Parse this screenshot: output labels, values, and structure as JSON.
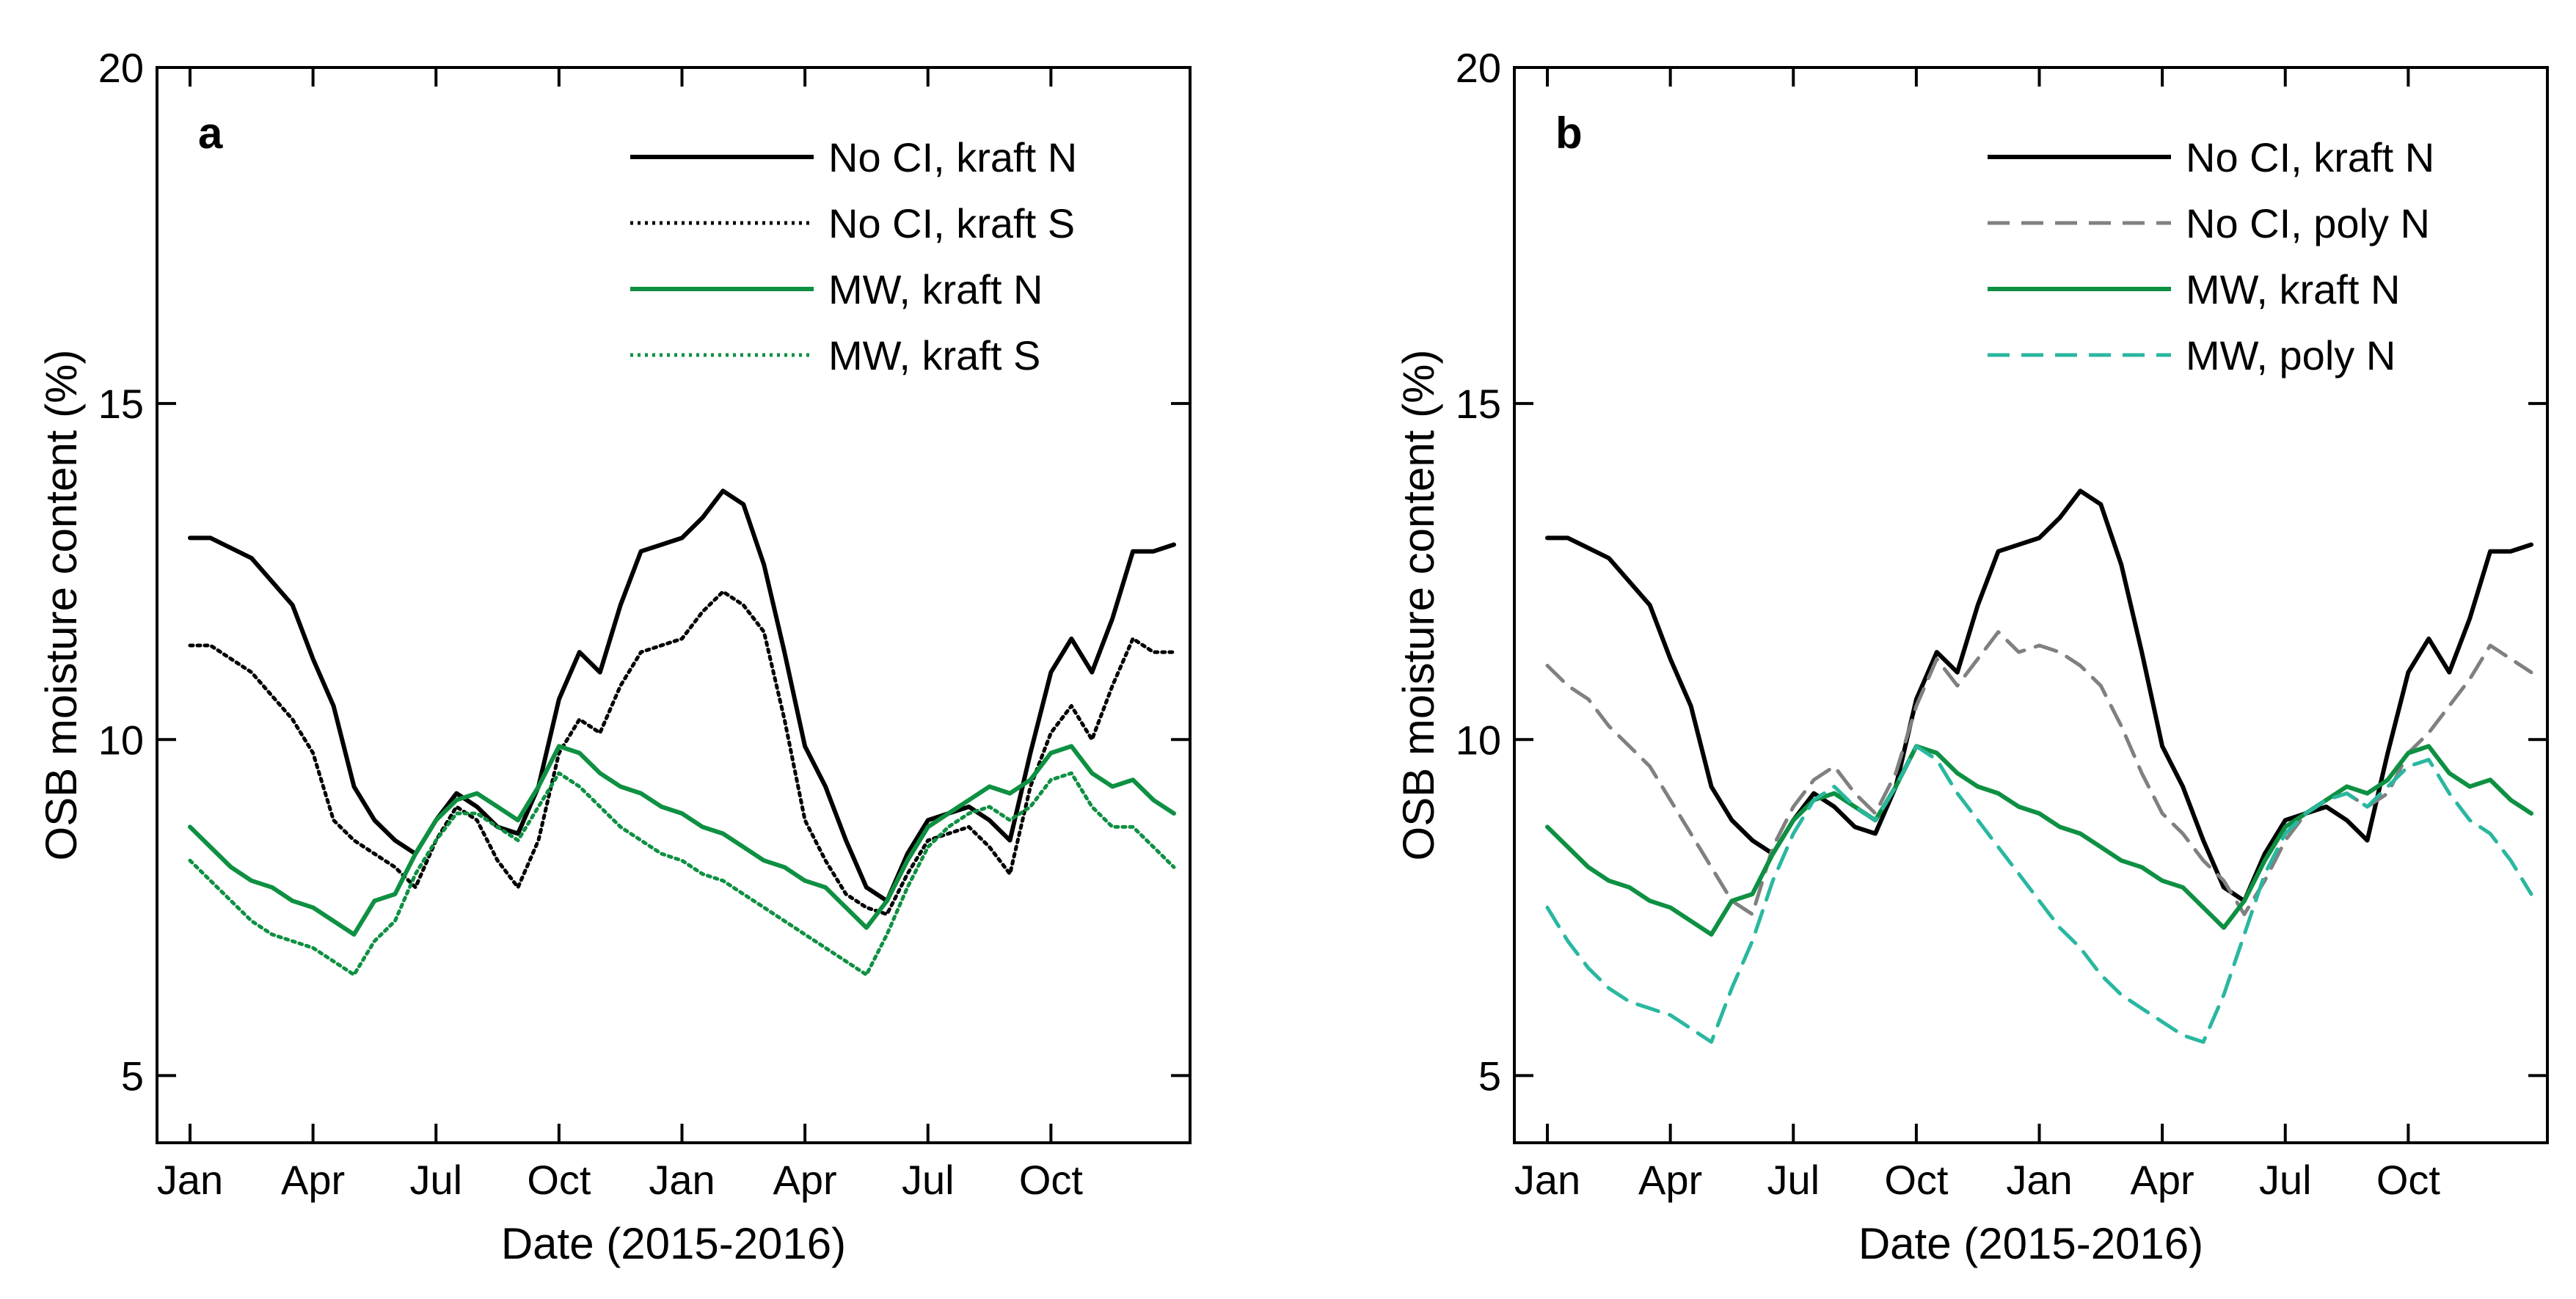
{
  "chart_data": [
    {
      "type": "line",
      "panel_label": "a",
      "xlabel": "Date (2015-2016)",
      "ylabel": "OSB moisture content (%)",
      "ylim": [
        4,
        20
      ],
      "xlim": [
        0,
        24
      ],
      "x_units": "months since Jan 2015",
      "yticks": [
        5,
        10,
        15,
        20
      ],
      "ytick_labels": [
        "5",
        "10",
        "15",
        "20"
      ],
      "xticks": [
        0,
        3,
        6,
        9,
        12,
        15,
        18,
        21
      ],
      "xtick_labels": [
        "Jan",
        "Apr",
        "Jul",
        "Oct",
        "Jan",
        "Apr",
        "Jul",
        "Oct"
      ],
      "legend_position": "top-right",
      "series": [
        {
          "name": "No CI, kraft N",
          "color": "#000000",
          "style": "solid",
          "x": [
            0,
            0.5,
            1.5,
            2.5,
            3,
            3.5,
            4,
            4.5,
            5,
            5.5,
            6,
            6.5,
            7,
            7.5,
            8,
            8.5,
            9,
            9.5,
            10,
            10.5,
            11,
            12,
            12.5,
            13,
            13.5,
            14,
            14.5,
            15,
            15.5,
            16,
            16.5,
            17,
            17.5,
            18,
            18.5,
            19,
            19.5,
            20,
            20.5,
            21,
            21.5,
            22,
            22.5,
            23,
            23.5,
            24
          ],
          "y": [
            13.0,
            13.0,
            12.7,
            12.0,
            11.2,
            10.5,
            9.3,
            8.8,
            8.5,
            8.3,
            8.8,
            9.2,
            9.0,
            8.7,
            8.6,
            9.3,
            10.6,
            11.3,
            11.0,
            12.0,
            12.8,
            13.0,
            13.3,
            13.7,
            13.5,
            12.6,
            11.3,
            9.9,
            9.3,
            8.5,
            7.8,
            7.6,
            8.3,
            8.8,
            8.9,
            9.0,
            8.8,
            8.5,
            9.8,
            11.0,
            11.5,
            11.0,
            11.8,
            12.8,
            12.8,
            12.9
          ]
        },
        {
          "name": "No CI, kraft S",
          "color": "#000000",
          "style": "dotted",
          "x": [
            0,
            0.5,
            1.5,
            2.5,
            3,
            3.5,
            4,
            4.5,
            5,
            5.5,
            6,
            6.5,
            7,
            7.5,
            8,
            8.5,
            9,
            9.5,
            10,
            10.5,
            11,
            12,
            12.5,
            13,
            13.5,
            14,
            14.5,
            15,
            15.5,
            16,
            16.5,
            17,
            17.5,
            18,
            18.5,
            19,
            19.5,
            20,
            20.5,
            21,
            21.5,
            22,
            22.5,
            23,
            23.5,
            24
          ],
          "y": [
            11.4,
            11.4,
            11.0,
            10.3,
            9.8,
            8.8,
            8.5,
            8.3,
            8.1,
            7.8,
            8.5,
            9.0,
            8.8,
            8.2,
            7.8,
            8.5,
            9.8,
            10.3,
            10.1,
            10.8,
            11.3,
            11.5,
            11.9,
            12.2,
            12.0,
            11.6,
            10.3,
            8.8,
            8.2,
            7.7,
            7.5,
            7.4,
            8.0,
            8.5,
            8.6,
            8.7,
            8.4,
            8.0,
            9.3,
            10.1,
            10.5,
            10.0,
            10.8,
            11.5,
            11.3,
            11.3
          ]
        },
        {
          "name": "MW, kraft N",
          "color": "#0e9042",
          "style": "solid",
          "x": [
            0,
            0.5,
            1,
            1.5,
            2,
            2.5,
            3,
            3.5,
            4,
            4.5,
            5,
            5.5,
            6,
            6.5,
            7,
            7.5,
            8,
            8.5,
            9,
            9.5,
            10,
            10.5,
            11,
            11.5,
            12,
            12.5,
            13,
            13.5,
            14,
            14.5,
            15,
            15.5,
            16,
            16.5,
            17,
            17.5,
            18,
            18.5,
            19,
            19.5,
            20,
            20.5,
            21,
            21.5,
            22,
            22.5,
            23,
            23.5,
            24
          ],
          "y": [
            8.7,
            8.4,
            8.1,
            7.9,
            7.8,
            7.6,
            7.5,
            7.3,
            7.1,
            7.6,
            7.7,
            8.3,
            8.8,
            9.1,
            9.2,
            9.0,
            8.8,
            9.3,
            9.9,
            9.8,
            9.5,
            9.3,
            9.2,
            9.0,
            8.9,
            8.7,
            8.6,
            8.4,
            8.2,
            8.1,
            7.9,
            7.8,
            7.5,
            7.2,
            7.6,
            8.2,
            8.7,
            8.9,
            9.1,
            9.3,
            9.2,
            9.4,
            9.8,
            9.9,
            9.5,
            9.3,
            9.4,
            9.1,
            8.9
          ]
        },
        {
          "name": "MW, kraft S",
          "color": "#0e9042",
          "style": "dotted",
          "x": [
            0,
            0.5,
            1,
            1.5,
            2,
            2.5,
            3,
            3.5,
            4,
            4.5,
            5,
            5.5,
            6,
            6.5,
            7,
            7.5,
            8,
            8.5,
            9,
            9.5,
            10,
            10.5,
            11,
            11.5,
            12,
            12.5,
            13,
            13.5,
            14,
            14.5,
            15,
            15.5,
            16,
            16.5,
            17,
            17.5,
            18,
            18.5,
            19,
            19.5,
            20,
            20.5,
            21,
            21.5,
            22,
            22.5,
            23,
            23.5,
            24
          ],
          "y": [
            8.2,
            7.9,
            7.6,
            7.3,
            7.1,
            7.0,
            6.9,
            6.7,
            6.5,
            7.0,
            7.3,
            8.0,
            8.5,
            8.9,
            8.9,
            8.7,
            8.5,
            9.0,
            9.5,
            9.3,
            9.0,
            8.7,
            8.5,
            8.3,
            8.2,
            8.0,
            7.9,
            7.7,
            7.5,
            7.3,
            7.1,
            6.9,
            6.7,
            6.5,
            7.1,
            7.8,
            8.4,
            8.7,
            8.9,
            9.0,
            8.8,
            9.0,
            9.4,
            9.5,
            9.0,
            8.7,
            8.7,
            8.4,
            8.1
          ]
        }
      ]
    },
    {
      "type": "line",
      "panel_label": "b",
      "xlabel": "Date (2015-2016)",
      "ylabel": "OSB moisture content (%)",
      "ylim": [
        4,
        20
      ],
      "xlim": [
        0,
        24
      ],
      "x_units": "months since Jan 2015",
      "yticks": [
        5,
        10,
        15,
        20
      ],
      "ytick_labels": [
        "5",
        "10",
        "15",
        "20"
      ],
      "xticks": [
        0,
        3,
        6,
        9,
        12,
        15,
        18,
        21
      ],
      "xtick_labels": [
        "Jan",
        "Apr",
        "Jul",
        "Oct",
        "Jan",
        "Apr",
        "Jul",
        "Oct"
      ],
      "legend_position": "top-right",
      "series": [
        {
          "name": "No CI, kraft N",
          "color": "#000000",
          "style": "solid",
          "x": [
            0,
            0.5,
            1.5,
            2.5,
            3,
            3.5,
            4,
            4.5,
            5,
            5.5,
            6,
            6.5,
            7,
            7.5,
            8,
            8.5,
            9,
            9.5,
            10,
            10.5,
            11,
            12,
            12.5,
            13,
            13.5,
            14,
            14.5,
            15,
            15.5,
            16,
            16.5,
            17,
            17.5,
            18,
            18.5,
            19,
            19.5,
            20,
            20.5,
            21,
            21.5,
            22,
            22.5,
            23,
            23.5,
            24
          ],
          "y": [
            13.0,
            13.0,
            12.7,
            12.0,
            11.2,
            10.5,
            9.3,
            8.8,
            8.5,
            8.3,
            8.8,
            9.2,
            9.0,
            8.7,
            8.6,
            9.3,
            10.6,
            11.3,
            11.0,
            12.0,
            12.8,
            13.0,
            13.3,
            13.7,
            13.5,
            12.6,
            11.3,
            9.9,
            9.3,
            8.5,
            7.8,
            7.6,
            8.3,
            8.8,
            8.9,
            9.0,
            8.8,
            8.5,
            9.8,
            11.0,
            11.5,
            11.0,
            11.8,
            12.8,
            12.8,
            12.9
          ]
        },
        {
          "name": "No CI, poly N",
          "color": "#808080",
          "style": "dashed",
          "x": [
            0,
            0.5,
            1,
            1.5,
            2,
            2.5,
            3,
            3.5,
            4,
            4.5,
            5,
            5.5,
            6,
            6.5,
            7,
            7.5,
            8,
            8.5,
            9,
            9.5,
            10,
            10.5,
            11,
            11.5,
            12,
            12.5,
            13,
            13.5,
            14,
            14.5,
            15,
            15.5,
            16,
            16.5,
            17,
            17.5,
            18,
            18.5,
            19,
            19.5,
            20,
            20.5,
            21,
            21.5,
            22,
            22.5,
            23,
            23.5,
            24
          ],
          "y": [
            11.1,
            10.8,
            10.6,
            10.2,
            9.9,
            9.6,
            9.1,
            8.6,
            8.1,
            7.6,
            7.4,
            8.4,
            9.0,
            9.4,
            9.6,
            9.2,
            8.9,
            9.5,
            10.5,
            11.2,
            10.8,
            11.2,
            11.6,
            11.3,
            11.4,
            11.3,
            11.1,
            10.8,
            10.2,
            9.5,
            8.9,
            8.6,
            8.2,
            7.9,
            7.4,
            7.9,
            8.5,
            8.9,
            9.1,
            9.2,
            9.0,
            9.2,
            9.8,
            10.1,
            10.5,
            10.9,
            11.4,
            11.2,
            11.0
          ]
        },
        {
          "name": "MW, kraft N",
          "color": "#0e9042",
          "style": "solid",
          "x": [
            0,
            0.5,
            1,
            1.5,
            2,
            2.5,
            3,
            3.5,
            4,
            4.5,
            5,
            5.5,
            6,
            6.5,
            7,
            7.5,
            8,
            8.5,
            9,
            9.5,
            10,
            10.5,
            11,
            11.5,
            12,
            12.5,
            13,
            13.5,
            14,
            14.5,
            15,
            15.5,
            16,
            16.5,
            17,
            17.5,
            18,
            18.5,
            19,
            19.5,
            20,
            20.5,
            21,
            21.5,
            22,
            22.5,
            23,
            23.5,
            24
          ],
          "y": [
            8.7,
            8.4,
            8.1,
            7.9,
            7.8,
            7.6,
            7.5,
            7.3,
            7.1,
            7.6,
            7.7,
            8.3,
            8.8,
            9.1,
            9.2,
            9.0,
            8.8,
            9.3,
            9.9,
            9.8,
            9.5,
            9.3,
            9.2,
            9.0,
            8.9,
            8.7,
            8.6,
            8.4,
            8.2,
            8.1,
            7.9,
            7.8,
            7.5,
            7.2,
            7.6,
            8.2,
            8.7,
            8.9,
            9.1,
            9.3,
            9.2,
            9.4,
            9.8,
            9.9,
            9.5,
            9.3,
            9.4,
            9.1,
            8.9
          ]
        },
        {
          "name": "MW, poly N",
          "color": "#2ab7a0",
          "style": "dashed",
          "x": [
            0,
            0.5,
            1,
            1.5,
            2,
            2.5,
            3,
            3.5,
            4,
            4.5,
            5,
            5.5,
            6,
            6.5,
            7,
            7.5,
            8,
            8.5,
            9,
            9.5,
            10,
            10.5,
            11,
            11.5,
            12,
            12.5,
            13,
            13.5,
            14,
            14.5,
            15,
            15.5,
            16,
            16.5,
            17,
            17.5,
            18,
            18.5,
            19,
            19.5,
            20,
            20.5,
            21,
            21.5,
            22,
            22.5,
            23,
            23.5,
            24
          ],
          "y": [
            7.5,
            7.0,
            6.6,
            6.3,
            6.1,
            6.0,
            5.9,
            5.7,
            5.5,
            6.3,
            7.0,
            7.9,
            8.6,
            9.1,
            9.3,
            9.0,
            8.8,
            9.3,
            9.9,
            9.7,
            9.2,
            8.8,
            8.4,
            8.0,
            7.6,
            7.2,
            6.9,
            6.5,
            6.2,
            6.0,
            5.8,
            5.6,
            5.5,
            6.2,
            7.1,
            8.0,
            8.6,
            8.9,
            9.1,
            9.2,
            9.0,
            9.3,
            9.6,
            9.7,
            9.2,
            8.8,
            8.6,
            8.2,
            7.7
          ]
        }
      ]
    }
  ]
}
